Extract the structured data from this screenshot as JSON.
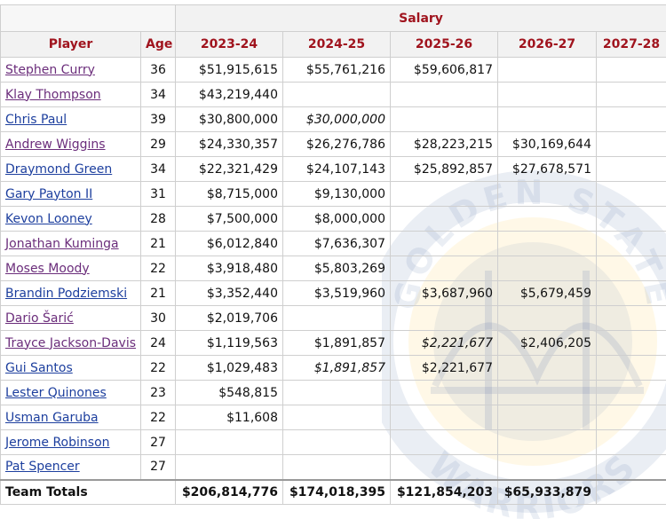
{
  "header": {
    "group_label": "Salary",
    "columns": [
      "Player",
      "Age",
      "2023-24",
      "2024-25",
      "2025-26",
      "2026-27",
      "2027-28"
    ]
  },
  "watermark": {
    "arc_text": "GOLDEN STATE",
    "bottom_text": "WARRIORS",
    "colors": {
      "blue": "#1d428a",
      "gold": "#ffc72c"
    }
  },
  "colors": {
    "header_text": "#a0141e",
    "link_visited": "#6b2d7b",
    "link": "#1d3f9e",
    "option_green": "#2e8b1e",
    "rookie_blue": "#1f4fb8"
  },
  "rows": [
    {
      "player": "Stephen Curry",
      "age": "36",
      "link": "purple",
      "cells": [
        {
          "v": "$51,915,615",
          "s": "guar"
        },
        {
          "v": "$55,761,216",
          "s": "guar"
        },
        {
          "v": "$59,606,817",
          "s": "guar"
        },
        {
          "v": "",
          "s": ""
        },
        {
          "v": "",
          "s": ""
        }
      ]
    },
    {
      "player": "Klay Thompson",
      "age": "34",
      "link": "purple",
      "cells": [
        {
          "v": "$43,219,440",
          "s": "guar"
        },
        {
          "v": "",
          "s": ""
        },
        {
          "v": "",
          "s": ""
        },
        {
          "v": "",
          "s": ""
        },
        {
          "v": "",
          "s": ""
        }
      ]
    },
    {
      "player": "Chris Paul",
      "age": "39",
      "link": "blue",
      "cells": [
        {
          "v": "$30,800,000",
          "s": "guar"
        },
        {
          "v": "$30,000,000",
          "s": "ital"
        },
        {
          "v": "",
          "s": ""
        },
        {
          "v": "",
          "s": ""
        },
        {
          "v": "",
          "s": ""
        }
      ]
    },
    {
      "player": "Andrew Wiggins",
      "age": "29",
      "link": "purple",
      "cells": [
        {
          "v": "$24,330,357",
          "s": "guar"
        },
        {
          "v": "$26,276,786",
          "s": "guar"
        },
        {
          "v": "$28,223,215",
          "s": "guar"
        },
        {
          "v": "$30,169,644",
          "s": "green"
        },
        {
          "v": "",
          "s": ""
        }
      ]
    },
    {
      "player": "Draymond Green",
      "age": "34",
      "link": "blue",
      "cells": [
        {
          "v": "$22,321,429",
          "s": "guar"
        },
        {
          "v": "$24,107,143",
          "s": "guar"
        },
        {
          "v": "$25,892,857",
          "s": "guar"
        },
        {
          "v": "$27,678,571",
          "s": "guar"
        },
        {
          "v": "",
          "s": ""
        }
      ]
    },
    {
      "player": "Gary Payton II",
      "age": "31",
      "link": "blue",
      "cells": [
        {
          "v": "$8,715,000",
          "s": "guar"
        },
        {
          "v": "$9,130,000",
          "s": "green"
        },
        {
          "v": "",
          "s": ""
        },
        {
          "v": "",
          "s": ""
        },
        {
          "v": "",
          "s": ""
        }
      ]
    },
    {
      "player": "Kevon Looney",
      "age": "28",
      "link": "blue",
      "cells": [
        {
          "v": "$7,500,000",
          "s": "guar"
        },
        {
          "v": "$8,000,000",
          "s": "guar"
        },
        {
          "v": "",
          "s": ""
        },
        {
          "v": "",
          "s": ""
        },
        {
          "v": "",
          "s": ""
        }
      ]
    },
    {
      "player": "Jonathan Kuminga",
      "age": "21",
      "link": "purple",
      "cells": [
        {
          "v": "$6,012,840",
          "s": "blue"
        },
        {
          "v": "$7,636,307",
          "s": "blue"
        },
        {
          "v": "",
          "s": ""
        },
        {
          "v": "",
          "s": ""
        },
        {
          "v": "",
          "s": ""
        }
      ]
    },
    {
      "player": "Moses Moody",
      "age": "22",
      "link": "purple",
      "cells": [
        {
          "v": "$3,918,480",
          "s": "blue"
        },
        {
          "v": "$5,803,269",
          "s": "blue"
        },
        {
          "v": "",
          "s": ""
        },
        {
          "v": "",
          "s": ""
        },
        {
          "v": "",
          "s": ""
        }
      ]
    },
    {
      "player": "Brandin Podziemski",
      "age": "21",
      "link": "blue",
      "cells": [
        {
          "v": "$3,352,440",
          "s": "guar"
        },
        {
          "v": "$3,519,960",
          "s": "guar"
        },
        {
          "v": "$3,687,960",
          "s": "blue"
        },
        {
          "v": "$5,679,459",
          "s": "blue"
        },
        {
          "v": "",
          "s": ""
        }
      ]
    },
    {
      "player": "Dario Šarić",
      "age": "30",
      "link": "purple",
      "cells": [
        {
          "v": "$2,019,706",
          "s": "guar"
        },
        {
          "v": "",
          "s": ""
        },
        {
          "v": "",
          "s": ""
        },
        {
          "v": "",
          "s": ""
        },
        {
          "v": "",
          "s": ""
        }
      ]
    },
    {
      "player": "Trayce Jackson-Davis",
      "age": "24",
      "link": "purple",
      "cells": [
        {
          "v": "$1,119,563",
          "s": "guar"
        },
        {
          "v": "$1,891,857",
          "s": "guar"
        },
        {
          "v": "$2,221,677",
          "s": "ital"
        },
        {
          "v": "$2,406,205",
          "s": "blue"
        },
        {
          "v": "",
          "s": ""
        }
      ]
    },
    {
      "player": "Gui Santos",
      "age": "22",
      "link": "blue",
      "cells": [
        {
          "v": "$1,029,483",
          "s": "guar"
        },
        {
          "v": "$1,891,857",
          "s": "ital"
        },
        {
          "v": "$2,221,677",
          "s": "blue"
        },
        {
          "v": "",
          "s": ""
        },
        {
          "v": "",
          "s": ""
        }
      ]
    },
    {
      "player": "Lester Quinones",
      "age": "23",
      "link": "blue",
      "cells": [
        {
          "v": "$548,815",
          "s": "guar"
        },
        {
          "v": "",
          "s": ""
        },
        {
          "v": "",
          "s": ""
        },
        {
          "v": "",
          "s": ""
        },
        {
          "v": "",
          "s": ""
        }
      ]
    },
    {
      "player": "Usman Garuba",
      "age": "22",
      "link": "blue",
      "cells": [
        {
          "v": "$11,608",
          "s": "guar"
        },
        {
          "v": "",
          "s": ""
        },
        {
          "v": "",
          "s": ""
        },
        {
          "v": "",
          "s": ""
        },
        {
          "v": "",
          "s": ""
        }
      ]
    },
    {
      "player": "Jerome Robinson",
      "age": "27",
      "link": "blue",
      "cells": [
        {
          "v": "",
          "s": ""
        },
        {
          "v": "",
          "s": ""
        },
        {
          "v": "",
          "s": ""
        },
        {
          "v": "",
          "s": ""
        },
        {
          "v": "",
          "s": ""
        }
      ]
    },
    {
      "player": "Pat Spencer",
      "age": "27",
      "link": "blue",
      "cells": [
        {
          "v": "",
          "s": ""
        },
        {
          "v": "",
          "s": ""
        },
        {
          "v": "",
          "s": ""
        },
        {
          "v": "",
          "s": ""
        },
        {
          "v": "",
          "s": ""
        }
      ]
    }
  ],
  "totals": {
    "label": "Team Totals",
    "values": [
      "$206,814,776",
      "$174,018,395",
      "$121,854,203",
      "$65,933,879",
      ""
    ]
  }
}
